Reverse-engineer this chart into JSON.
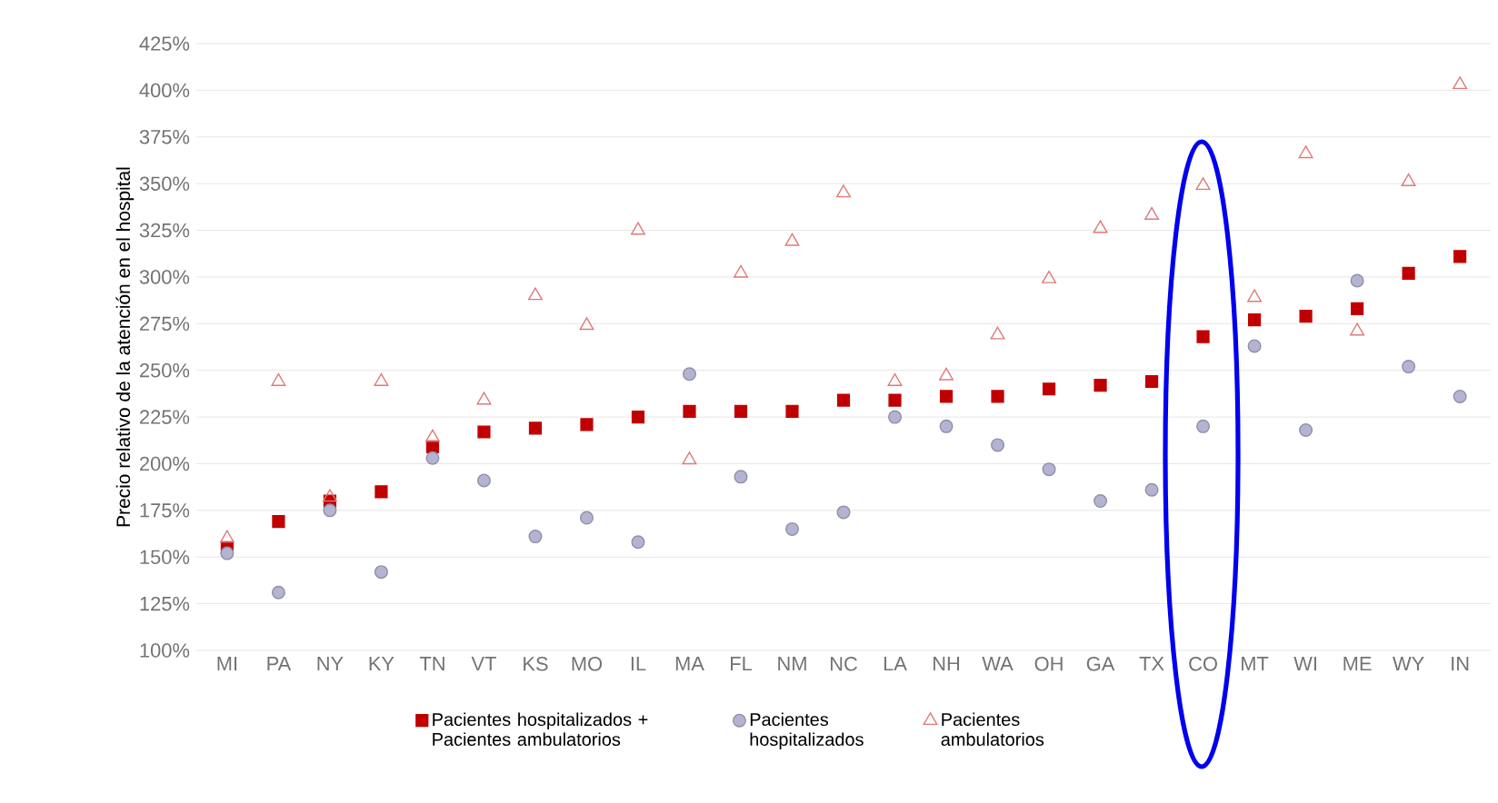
{
  "chart_data": {
    "type": "scatter",
    "ylabel": "Precio relativo de la atención en el hospital",
    "categories": [
      "MI",
      "PA",
      "NY",
      "KY",
      "TN",
      "VT",
      "KS",
      "MO",
      "IL",
      "MA",
      "FL",
      "NM",
      "NC",
      "LA",
      "NH",
      "WA",
      "OH",
      "GA",
      "TX",
      "CO",
      "MT",
      "WI",
      "ME",
      "WY",
      "IN"
    ],
    "series": [
      {
        "name": "Pacientes hospitalizados + Pacientes ambulatorios",
        "color": "#c00000",
        "marker": "square",
        "values": [
          155,
          169,
          180,
          185,
          209,
          217,
          219,
          221,
          225,
          228,
          228,
          228,
          234,
          234,
          236,
          236,
          240,
          242,
          244,
          268,
          277,
          279,
          283,
          302,
          311
        ]
      },
      {
        "name": "Pacientes hospitalizados",
        "color": "#b4b4d2",
        "marker": "circle",
        "values": [
          152,
          131,
          175,
          142,
          203,
          191,
          161,
          171,
          158,
          248,
          193,
          165,
          174,
          225,
          220,
          210,
          197,
          180,
          186,
          220,
          263,
          218,
          298,
          252,
          236
        ]
      },
      {
        "name": "Pacientes ambulatorios",
        "color": "#e07a7a",
        "marker": "triangle",
        "values": [
          160,
          244,
          182,
          244,
          214,
          234,
          290,
          274,
          325,
          202,
          302,
          319,
          345,
          244,
          247,
          269,
          299,
          326,
          333,
          349,
          289,
          366,
          271,
          351,
          403
        ]
      }
    ],
    "ylim": [
      100,
      425
    ],
    "yticks": [
      {
        "value": 100,
        "label": "100%"
      },
      {
        "value": 125,
        "label": "125%"
      },
      {
        "value": 150,
        "label": "150%"
      },
      {
        "value": 175,
        "label": "175%"
      },
      {
        "value": 200,
        "label": "200%"
      },
      {
        "value": 225,
        "label": "225%"
      },
      {
        "value": 250,
        "label": "250%"
      },
      {
        "value": 275,
        "label": "275%"
      },
      {
        "value": 300,
        "label": "300%"
      },
      {
        "value": 325,
        "label": "325%"
      },
      {
        "value": 350,
        "label": "350%"
      },
      {
        "value": 375,
        "label": "375%"
      },
      {
        "value": 400,
        "label": "400%"
      },
      {
        "value": 425,
        "label": "425%"
      }
    ],
    "grid": "y",
    "legend": "bottom"
  }
}
